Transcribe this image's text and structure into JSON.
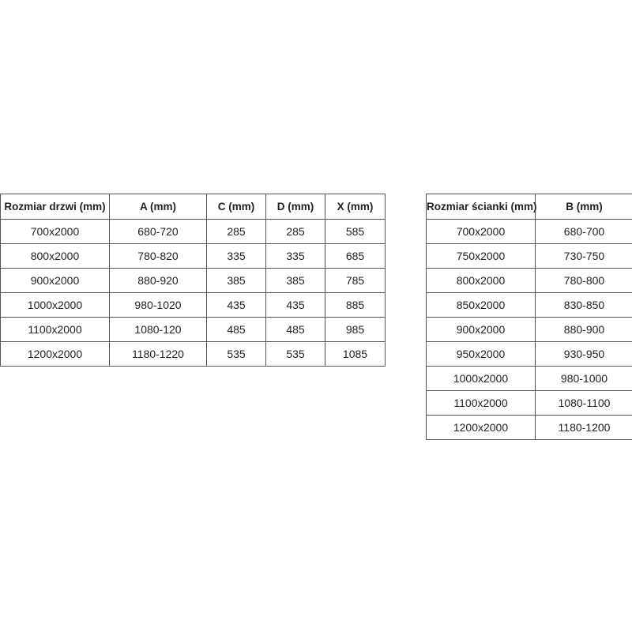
{
  "door_table": {
    "headers": [
      "Rozmiar drzwi (mm)",
      "A (mm)",
      "C (mm)",
      "D (mm)",
      "X (mm)"
    ],
    "rows": [
      [
        "700x2000",
        "680-720",
        "285",
        "285",
        "585"
      ],
      [
        "800x2000",
        "780-820",
        "335",
        "335",
        "685"
      ],
      [
        "900x2000",
        "880-920",
        "385",
        "385",
        "785"
      ],
      [
        "1000x2000",
        "980-1020",
        "435",
        "435",
        "885"
      ],
      [
        "1100x2000",
        "1080-120",
        "485",
        "485",
        "985"
      ],
      [
        "1200x2000",
        "1180-1220",
        "535",
        "535",
        "1085"
      ]
    ]
  },
  "wall_table": {
    "headers": [
      "Rozmiar ścianki (mm)",
      "B (mm)"
    ],
    "rows": [
      [
        "700x2000",
        "680-700"
      ],
      [
        "750x2000",
        "730-750"
      ],
      [
        "800x2000",
        "780-800"
      ],
      [
        "850x2000",
        "830-850"
      ],
      [
        "900x2000",
        "880-900"
      ],
      [
        "950x2000",
        "930-950"
      ],
      [
        "1000x2000",
        "980-1000"
      ],
      [
        "1100x2000",
        "1080-1100"
      ],
      [
        "1200x2000",
        "1180-1200"
      ]
    ]
  }
}
